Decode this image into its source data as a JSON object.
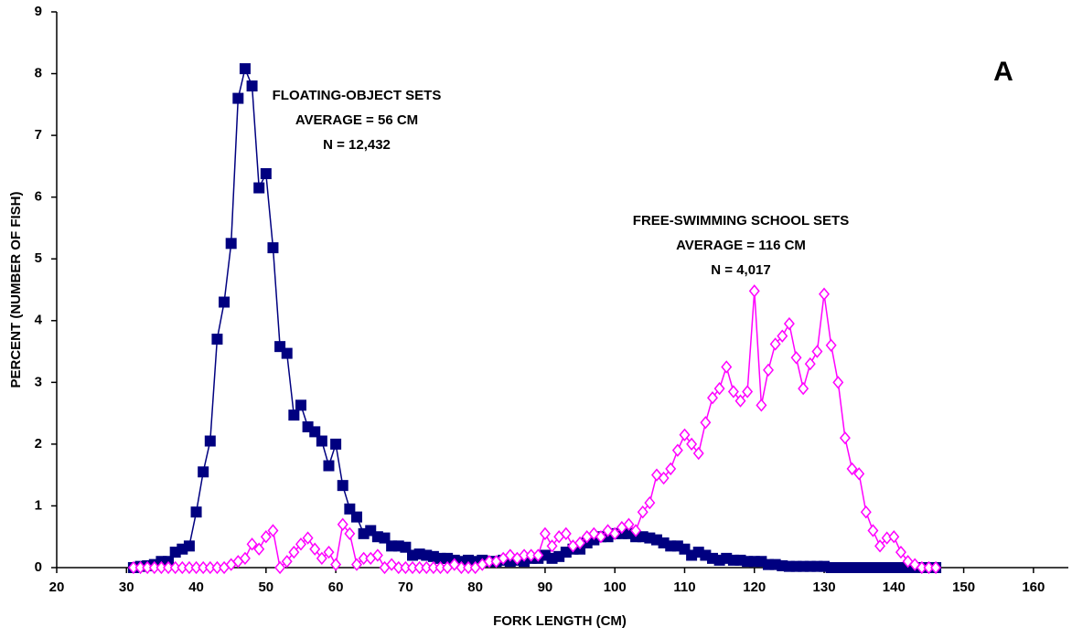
{
  "chart_data": {
    "type": "line",
    "label": "A",
    "x_label": "FORK LENGTH (CM)",
    "y_label": "PERCENT (NUMBER OF FISH)",
    "x": [
      31,
      32,
      33,
      34,
      35,
      36,
      37,
      38,
      39,
      40,
      41,
      42,
      43,
      44,
      45,
      46,
      47,
      48,
      49,
      50,
      51,
      52,
      53,
      54,
      55,
      56,
      57,
      58,
      59,
      60,
      61,
      62,
      63,
      64,
      65,
      66,
      67,
      68,
      69,
      70,
      71,
      72,
      73,
      74,
      75,
      76,
      77,
      78,
      79,
      80,
      81,
      82,
      83,
      84,
      85,
      86,
      87,
      88,
      89,
      90,
      91,
      92,
      93,
      94,
      95,
      96,
      97,
      98,
      99,
      100,
      101,
      102,
      103,
      104,
      105,
      106,
      107,
      108,
      109,
      110,
      111,
      112,
      113,
      114,
      115,
      116,
      117,
      118,
      119,
      120,
      121,
      122,
      123,
      124,
      125,
      126,
      127,
      128,
      129,
      130,
      131,
      132,
      133,
      134,
      135,
      136,
      137,
      138,
      139,
      140,
      141,
      142,
      143,
      144,
      145,
      146
    ],
    "series": [
      {
        "name": "FLOATING-OBJECT SETS",
        "notes": [
          "AVERAGE = 56 CM",
          "N = 12,432"
        ],
        "color": "#000080",
        "marker": "square",
        "values": [
          0,
          0.02,
          0.03,
          0.05,
          0.1,
          0.1,
          0.25,
          0.3,
          0.35,
          0.9,
          1.55,
          2.05,
          3.7,
          4.3,
          5.25,
          7.6,
          8.08,
          7.8,
          6.15,
          6.38,
          5.18,
          3.58,
          3.47,
          2.47,
          2.63,
          2.28,
          2.2,
          2.05,
          1.65,
          2.0,
          1.33,
          0.95,
          0.82,
          0.55,
          0.6,
          0.5,
          0.48,
          0.35,
          0.35,
          0.33,
          0.2,
          0.22,
          0.2,
          0.18,
          0.15,
          0.15,
          0.12,
          0.1,
          0.12,
          0.1,
          0.12,
          0.1,
          0.1,
          0.12,
          0.1,
          0.12,
          0.1,
          0.15,
          0.15,
          0.2,
          0.15,
          0.18,
          0.25,
          0.3,
          0.3,
          0.4,
          0.45,
          0.5,
          0.5,
          0.55,
          0.55,
          0.55,
          0.5,
          0.5,
          0.48,
          0.45,
          0.4,
          0.35,
          0.35,
          0.3,
          0.2,
          0.25,
          0.2,
          0.15,
          0.12,
          0.15,
          0.12,
          0.12,
          0.1,
          0.1,
          0.1,
          0.05,
          0.05,
          0.03,
          0.02,
          0.02,
          0.02,
          0.02,
          0.02,
          0.02,
          0,
          0,
          0,
          0,
          0,
          0,
          0,
          0,
          0,
          0,
          0,
          0,
          0,
          0,
          0,
          0
        ]
      },
      {
        "name": "FREE-SWIMMING SCHOOL SETS",
        "notes": [
          "AVERAGE = 116 CM",
          "N = 4,017"
        ],
        "color": "#ff00ff",
        "marker": "diamond",
        "values": [
          0,
          0,
          0,
          0,
          0,
          0,
          0,
          0,
          0,
          0,
          0,
          0,
          0,
          0,
          0.05,
          0.1,
          0.15,
          0.38,
          0.3,
          0.5,
          0.6,
          0,
          0.1,
          0.25,
          0.38,
          0.48,
          0.3,
          0.15,
          0.25,
          0.05,
          0.7,
          0.55,
          0.05,
          0.15,
          0.15,
          0.2,
          0,
          0.05,
          0,
          0,
          0,
          0,
          0,
          0,
          0,
          0,
          0.05,
          0,
          0,
          0,
          0.05,
          0.1,
          0.1,
          0.15,
          0.2,
          0.15,
          0.2,
          0.2,
          0.2,
          0.55,
          0.35,
          0.5,
          0.55,
          0.35,
          0.4,
          0.5,
          0.55,
          0.5,
          0.6,
          0.55,
          0.65,
          0.7,
          0.6,
          0.9,
          1.05,
          1.5,
          1.45,
          1.6,
          1.9,
          2.15,
          2.0,
          1.85,
          2.35,
          2.75,
          2.9,
          3.25,
          2.85,
          2.7,
          2.85,
          4.48,
          2.63,
          3.2,
          3.62,
          3.75,
          3.95,
          3.4,
          2.9,
          3.3,
          3.5,
          4.43,
          3.6,
          3.0,
          2.1,
          1.6,
          1.52,
          0.9,
          0.6,
          0.35,
          0.48,
          0.5,
          0.25,
          0.1,
          0.05,
          0,
          0,
          0
        ]
      }
    ],
    "xlim": [
      20,
      165
    ],
    "xticks": [
      20,
      30,
      40,
      50,
      60,
      70,
      80,
      90,
      100,
      110,
      120,
      130,
      140,
      150,
      160
    ],
    "ylim": [
      0,
      9
    ],
    "yticks": [
      0,
      1,
      2,
      3,
      4,
      5,
      6,
      7,
      8,
      9
    ],
    "grid": false
  }
}
